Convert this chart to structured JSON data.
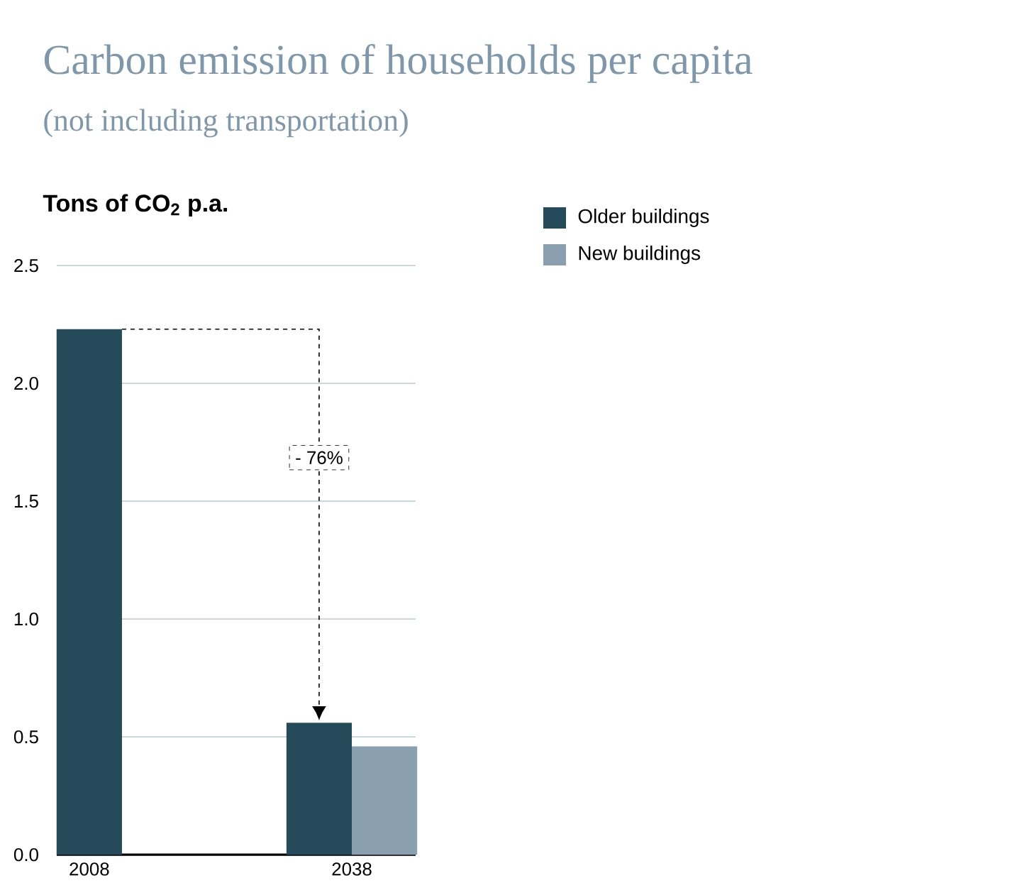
{
  "chart_data": {
    "type": "bar",
    "title": "Carbon emission of households per capita",
    "subtitle": "(not including transportation)",
    "ylabel": "Tons of CO$_{2}$ p.a.",
    "categories": [
      "2008",
      "2038"
    ],
    "series": [
      {
        "name": "Older buildings",
        "color": "#254a5a",
        "values": [
          2.23,
          0.56
        ]
      },
      {
        "name": "New buildings",
        "color": "#8a9fb0",
        "values": [
          null,
          0.46
        ]
      }
    ],
    "ylim": [
      0,
      2.5
    ],
    "yticks": [
      {
        "value": 0,
        "label": "0.0"
      },
      {
        "value": 0.5,
        "label": "0.5"
      },
      {
        "value": 1,
        "label": "1.0"
      },
      {
        "value": 1.5,
        "label": "1.5"
      },
      {
        "value": 2,
        "label": "2.0"
      },
      {
        "value": 2.5,
        "label": "2.5"
      }
    ],
    "grid": "y",
    "legend": "top right",
    "annotations": [
      "- 76%"
    ]
  }
}
